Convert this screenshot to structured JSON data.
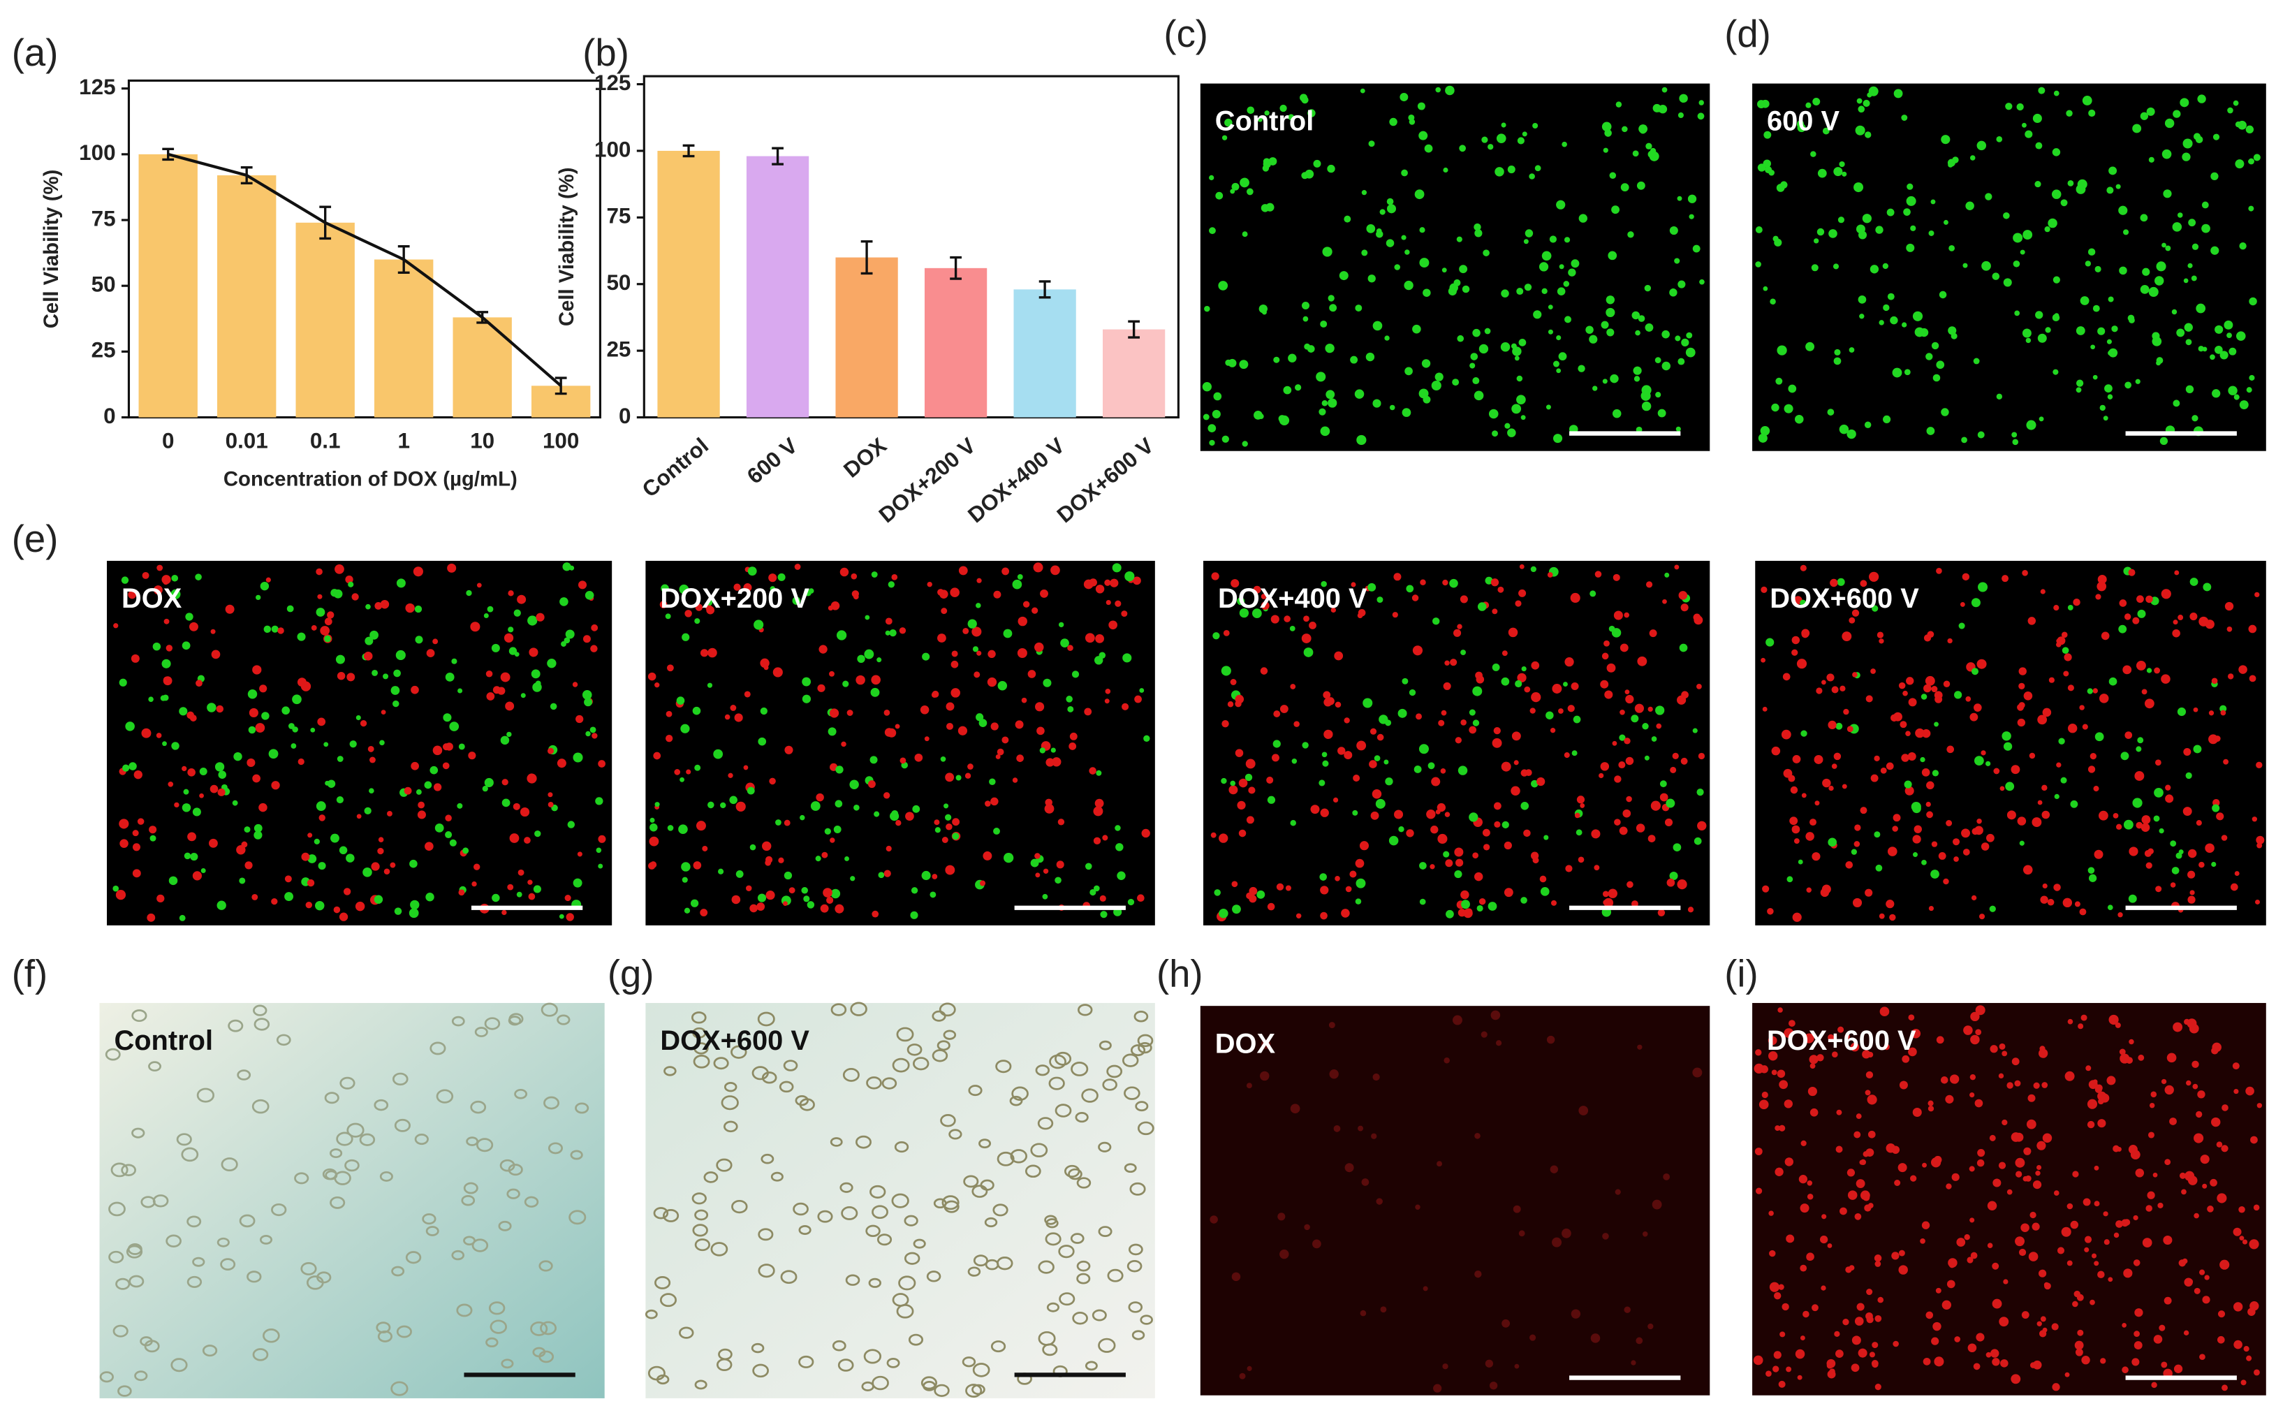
{
  "chart_data": [
    {
      "type": "bar",
      "ylabel": "Cell Viability (%)",
      "xlabel": "Concentration of DOX (µg/mL)",
      "categories": [
        "0",
        "0.01",
        "0.1",
        "1",
        "10",
        "100"
      ],
      "values": [
        100,
        92,
        74,
        60,
        38,
        12
      ],
      "errors": [
        2,
        3,
        6,
        5,
        2,
        3
      ],
      "color": "#f9c66b",
      "line_color": "#111111",
      "ylim": [
        0,
        128
      ],
      "yticks": [
        0,
        25,
        50,
        75,
        100,
        125
      ]
    },
    {
      "type": "bar",
      "ylabel": "Cell Viability (%)",
      "categories": [
        "Control",
        "600 V",
        "DOX",
        "DOX+200 V",
        "DOX+400 V",
        "DOX+600 V"
      ],
      "values": [
        100,
        98,
        60,
        56,
        48,
        33
      ],
      "errors": [
        2,
        3,
        6,
        4,
        3,
        3
      ],
      "colors": [
        "#f9c66b",
        "#d9a9ef",
        "#f9a865",
        "#f98d8f",
        "#a6def1",
        "#fbc3c3"
      ],
      "ylim": [
        0,
        128
      ],
      "yticks": [
        0,
        25,
        50,
        75,
        100,
        125
      ]
    }
  ],
  "panels": [
    "(a)",
    "(b)",
    "(c)",
    "(d)",
    "(e)",
    "(f)",
    "(g)",
    "(h)",
    "(i)"
  ],
  "images": [
    "Control",
    "600 V",
    "DOX",
    "DOX+200 V",
    "DOX+400 V",
    "DOX+600 V",
    "Control",
    "DOX+600 V",
    "DOX",
    "DOX+600 V"
  ]
}
